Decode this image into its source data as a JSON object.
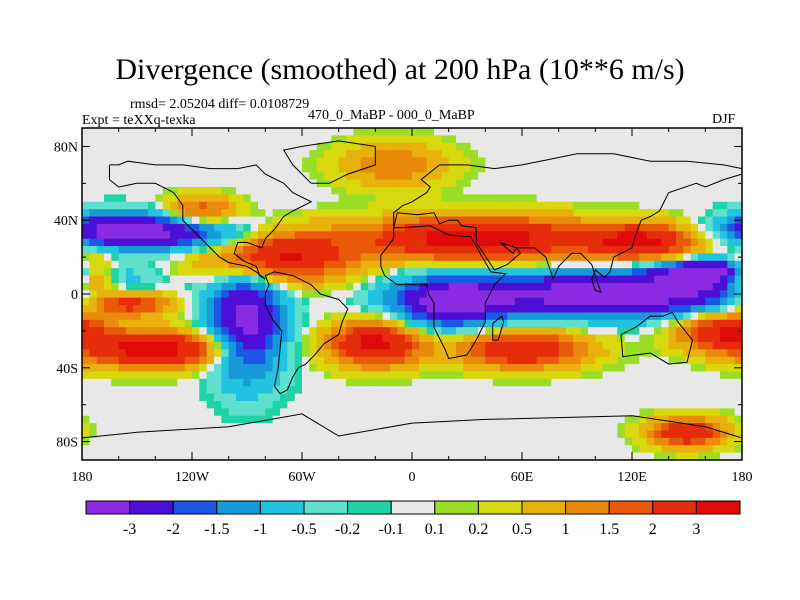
{
  "chart_data": {
    "type": "heatmap",
    "title": "Divergence (smoothed) at 200 hPa (10**6 m/s)",
    "stats": "rmsd= 2.05204  diff= 0.0108729",
    "experiment": "Expt = teXXq-texka",
    "comparison": "470_0_MaBP - 000_0_MaBP",
    "season": "DJF",
    "x_axis": {
      "range": [
        -180,
        180
      ],
      "ticks": [
        {
          "value": -180,
          "label": "180"
        },
        {
          "value": -120,
          "label": "120W"
        },
        {
          "value": -60,
          "label": "60W"
        },
        {
          "value": 0,
          "label": "0"
        },
        {
          "value": 60,
          "label": "60E"
        },
        {
          "value": 120,
          "label": "120E"
        },
        {
          "value": 180,
          "label": "180"
        }
      ]
    },
    "y_axis": {
      "range": [
        -90,
        90
      ],
      "ticks": [
        {
          "value": 80,
          "label": "80N"
        },
        {
          "value": 40,
          "label": "40N"
        },
        {
          "value": 0,
          "label": "0"
        },
        {
          "value": -40,
          "label": "40S"
        },
        {
          "value": -80,
          "label": "80S"
        }
      ]
    },
    "colorbar": {
      "colors": [
        "#8a2be2",
        "#4b0fd6",
        "#1a57e6",
        "#179ad8",
        "#21c3e0",
        "#5fe0cc",
        "#1ed3a5",
        "#e8e8e8",
        "#9ade28",
        "#d8d80e",
        "#e8b10b",
        "#e98a0a",
        "#e85a0a",
        "#e62d0b",
        "#e00a0a"
      ],
      "labels": [
        "-3",
        "-2",
        "-1.5",
        "-1",
        "-0.5",
        "-0.2",
        "-0.1",
        "0.1",
        "0.2",
        "0.5",
        "1",
        "1.5",
        "2",
        "3"
      ]
    },
    "field_features": [
      {
        "lon": -160,
        "lat": 35,
        "value": -3.5,
        "rlon": 30,
        "rlat": 9
      },
      {
        "lon": -120,
        "lat": 32,
        "value": -2.2,
        "rlon": 35,
        "rlat": 10
      },
      {
        "lon": -90,
        "lat": -15,
        "value": -3.5,
        "rlon": 20,
        "rlat": 30
      },
      {
        "lon": 20,
        "lat": -5,
        "value": -3.0,
        "rlon": 30,
        "rlat": 14
      },
      {
        "lon": 110,
        "lat": 0,
        "value": -4.0,
        "rlon": 80,
        "rlat": 12
      },
      {
        "lon": 165,
        "lat": 12,
        "value": -3.5,
        "rlon": 30,
        "rlat": 7
      },
      {
        "lon": -155,
        "lat": -5,
        "value": 3.0,
        "rlon": 25,
        "rlat": 7
      },
      {
        "lon": -175,
        "lat": 10,
        "value": 3.2,
        "rlon": 14,
        "rlat": 10
      },
      {
        "lon": -75,
        "lat": 20,
        "value": 3.4,
        "rlon": 40,
        "rlat": 14
      },
      {
        "lon": 35,
        "lat": 30,
        "value": 3.8,
        "rlon": 60,
        "rlat": 12
      },
      {
        "lon": 125,
        "lat": 28,
        "value": 3.2,
        "rlon": 30,
        "rlat": 10
      },
      {
        "lon": -140,
        "lat": -30,
        "value": 3.5,
        "rlon": 40,
        "rlat": 10
      },
      {
        "lon": -20,
        "lat": -27,
        "value": 3.5,
        "rlon": 25,
        "rlat": 12
      },
      {
        "lon": 60,
        "lat": -30,
        "value": 3.0,
        "rlon": 35,
        "rlat": 10
      },
      {
        "lon": 170,
        "lat": -20,
        "value": 3.0,
        "rlon": 25,
        "rlat": 10
      },
      {
        "lon": 150,
        "lat": -75,
        "value": 3.0,
        "rlon": 20,
        "rlat": 8
      },
      {
        "lon": -115,
        "lat": 45,
        "value": 2.0,
        "rlon": 20,
        "rlat": 8
      },
      {
        "lon": -10,
        "lat": 70,
        "value": 1.5,
        "rlon": 30,
        "rlat": 12
      }
    ],
    "coastlines": [
      [
        [
          -165,
          70
        ],
        [
          -160,
          70
        ],
        [
          -155,
          72
        ],
        [
          -140,
          70
        ],
        [
          -125,
          70
        ],
        [
          -110,
          68
        ],
        [
          -95,
          68
        ],
        [
          -85,
          70
        ],
        [
          -80,
          65
        ],
        [
          -70,
          60
        ],
        [
          -65,
          55
        ],
        [
          -55,
          50
        ],
        [
          -65,
          45
        ],
        [
          -70,
          42
        ],
        [
          -75,
          35
        ],
        [
          -80,
          30
        ],
        [
          -82,
          25
        ],
        [
          -90,
          28
        ],
        [
          -95,
          28
        ],
        [
          -97,
          22
        ],
        [
          -92,
          18
        ],
        [
          -85,
          15
        ],
        [
          -83,
          10
        ],
        [
          -80,
          8
        ],
        [
          -85,
          12
        ],
        [
          -90,
          15
        ],
        [
          -100,
          17
        ],
        [
          -105,
          20
        ],
        [
          -110,
          25
        ],
        [
          -115,
          30
        ],
        [
          -120,
          35
        ],
        [
          -125,
          40
        ],
        [
          -125,
          48
        ],
        [
          -130,
          55
        ],
        [
          -140,
          60
        ],
        [
          -150,
          60
        ],
        [
          -160,
          58
        ],
        [
          -165,
          62
        ],
        [
          -165,
          70
        ]
      ],
      [
        [
          -80,
          10
        ],
        [
          -75,
          12
        ],
        [
          -65,
          10
        ],
        [
          -55,
          5
        ],
        [
          -50,
          0
        ],
        [
          -40,
          -3
        ],
        [
          -35,
          -8
        ],
        [
          -38,
          -15
        ],
        [
          -40,
          -22
        ],
        [
          -48,
          -27
        ],
        [
          -53,
          -33
        ],
        [
          -58,
          -38
        ],
        [
          -62,
          -40
        ],
        [
          -65,
          -45
        ],
        [
          -68,
          -52
        ],
        [
          -72,
          -54
        ],
        [
          -75,
          -50
        ],
        [
          -73,
          -40
        ],
        [
          -72,
          -30
        ],
        [
          -71,
          -20
        ],
        [
          -76,
          -14
        ],
        [
          -80,
          -6
        ],
        [
          -80,
          0
        ],
        [
          -78,
          5
        ],
        [
          -80,
          10
        ]
      ],
      [
        [
          -55,
          60
        ],
        [
          -45,
          60
        ],
        [
          -35,
          65
        ],
        [
          -20,
          70
        ],
        [
          -20,
          80
        ],
        [
          -40,
          83
        ],
        [
          -60,
          80
        ],
        [
          -70,
          78
        ],
        [
          -65,
          70
        ],
        [
          -55,
          60
        ]
      ],
      [
        [
          -10,
          36
        ],
        [
          -5,
          36
        ],
        [
          10,
          37
        ],
        [
          20,
          32
        ],
        [
          32,
          31
        ],
        [
          43,
          12
        ],
        [
          51,
          11
        ],
        [
          45,
          5
        ],
        [
          40,
          -5
        ],
        [
          40,
          -15
        ],
        [
          35,
          -25
        ],
        [
          30,
          -33
        ],
        [
          20,
          -35
        ],
        [
          18,
          -30
        ],
        [
          12,
          -18
        ],
        [
          12,
          -5
        ],
        [
          9,
          0
        ],
        [
          8,
          5
        ],
        [
          0,
          5
        ],
        [
          -8,
          5
        ],
        [
          -15,
          10
        ],
        [
          -17,
          15
        ],
        [
          -17,
          21
        ],
        [
          -10,
          30
        ],
        [
          -10,
          36
        ]
      ],
      [
        [
          -10,
          36
        ],
        [
          -10,
          44
        ],
        [
          -5,
          48
        ],
        [
          0,
          50
        ],
        [
          8,
          55
        ],
        [
          10,
          58
        ],
        [
          5,
          62
        ],
        [
          15,
          70
        ],
        [
          30,
          70
        ],
        [
          45,
          68
        ],
        [
          60,
          70
        ],
        [
          75,
          73
        ],
        [
          90,
          76
        ],
        [
          110,
          76
        ],
        [
          130,
          72
        ],
        [
          150,
          72
        ],
        [
          170,
          70
        ],
        [
          180,
          68
        ],
        [
          180,
          65
        ],
        [
          170,
          62
        ],
        [
          160,
          58
        ],
        [
          155,
          60
        ],
        [
          140,
          55
        ],
        [
          135,
          45
        ],
        [
          130,
          42
        ],
        [
          125,
          40
        ],
        [
          122,
          32
        ],
        [
          120,
          25
        ],
        [
          110,
          20
        ],
        [
          108,
          12
        ],
        [
          105,
          9
        ],
        [
          100,
          13
        ],
        [
          98,
          8
        ],
        [
          100,
          2
        ],
        [
          103,
          1
        ],
        [
          98,
          16
        ],
        [
          92,
          22
        ],
        [
          87,
          22
        ],
        [
          80,
          15
        ],
        [
          77,
          8
        ],
        [
          73,
          20
        ],
        [
          67,
          25
        ],
        [
          57,
          25
        ],
        [
          55,
          22
        ],
        [
          48,
          28
        ],
        [
          57,
          25
        ],
        [
          59,
          22
        ],
        [
          52,
          16
        ],
        [
          45,
          13
        ],
        [
          35,
          28
        ],
        [
          35,
          36
        ],
        [
          27,
          37
        ],
        [
          25,
          40
        ],
        [
          20,
          40
        ],
        [
          15,
          38
        ],
        [
          12,
          44
        ],
        [
          3,
          43
        ],
        [
          -8,
          44
        ],
        [
          -10,
          36
        ]
      ],
      [
        [
          44,
          -25
        ],
        [
          47,
          -25
        ],
        [
          50,
          -15
        ],
        [
          49,
          -12
        ],
        [
          44,
          -16
        ],
        [
          44,
          -25
        ]
      ],
      [
        [
          114,
          -22
        ],
        [
          122,
          -18
        ],
        [
          130,
          -12
        ],
        [
          137,
          -12
        ],
        [
          142,
          -10
        ],
        [
          145,
          -15
        ],
        [
          153,
          -25
        ],
        [
          150,
          -37
        ],
        [
          140,
          -38
        ],
        [
          130,
          -32
        ],
        [
          115,
          -34
        ],
        [
          114,
          -22
        ]
      ],
      [
        [
          -180,
          -78
        ],
        [
          -150,
          -75
        ],
        [
          -100,
          -72
        ],
        [
          -60,
          -65
        ],
        [
          -40,
          -77
        ],
        [
          0,
          -70
        ],
        [
          40,
          -68
        ],
        [
          80,
          -67
        ],
        [
          120,
          -66
        ],
        [
          160,
          -72
        ],
        [
          180,
          -78
        ]
      ]
    ]
  }
}
